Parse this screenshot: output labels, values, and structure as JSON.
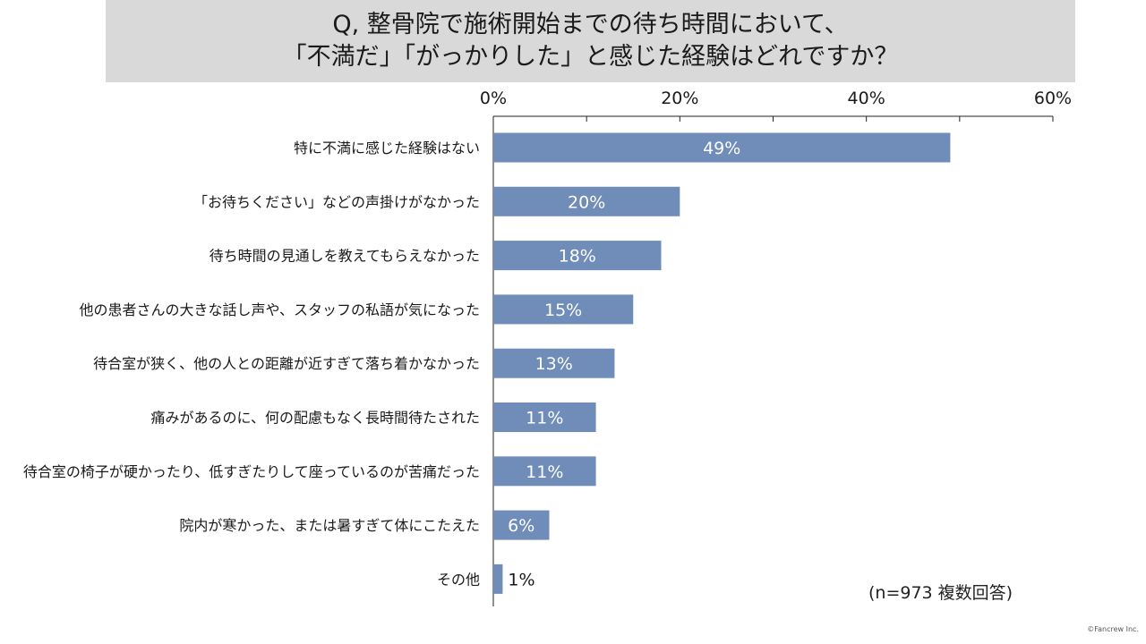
{
  "title": {
    "line1": "Q, 整骨院で施術開始までの待ち時間において、",
    "line2": "「不満だ」「がっかりした」と感じた経験はどれですか？"
  },
  "footnote": "(n=973 複数回答)",
  "credit": "©Fancrew Inc.",
  "colors": {
    "bar": "#6f8db8",
    "title_bg": "#d9d9d9",
    "axis": "#222222"
  },
  "chart_data": {
    "type": "bar",
    "orientation": "horizontal",
    "xlim": [
      0,
      60
    ],
    "ticks": [
      0,
      20,
      40,
      60
    ],
    "tick_labels": [
      "0%",
      "20%",
      "40%",
      "60%"
    ],
    "grid": false,
    "categories": [
      "特に不満に感じた経験はない",
      "「お待ちください」などの声掛けがなかった",
      "待ち時間の見通しを教えてもらえなかった",
      "他の患者さんの大きな話し声や、スタッフの私語が気になった",
      "待合室が狭く、他の人との距離が近すぎて落ち着かなかった",
      "痛みがあるのに、何の配慮もなく長時間待たされた",
      "待合室の椅子が硬かったり、低すぎたりして座っているのが苦痛だった",
      "院内が寒かった、または暑すぎて体にこたえた",
      "その他"
    ],
    "values": [
      49,
      20,
      18,
      15,
      13,
      11,
      11,
      6,
      1
    ],
    "value_labels": [
      "49%",
      "20%",
      "18%",
      "15%",
      "13%",
      "11%",
      "11%",
      "6%",
      "1%"
    ]
  }
}
